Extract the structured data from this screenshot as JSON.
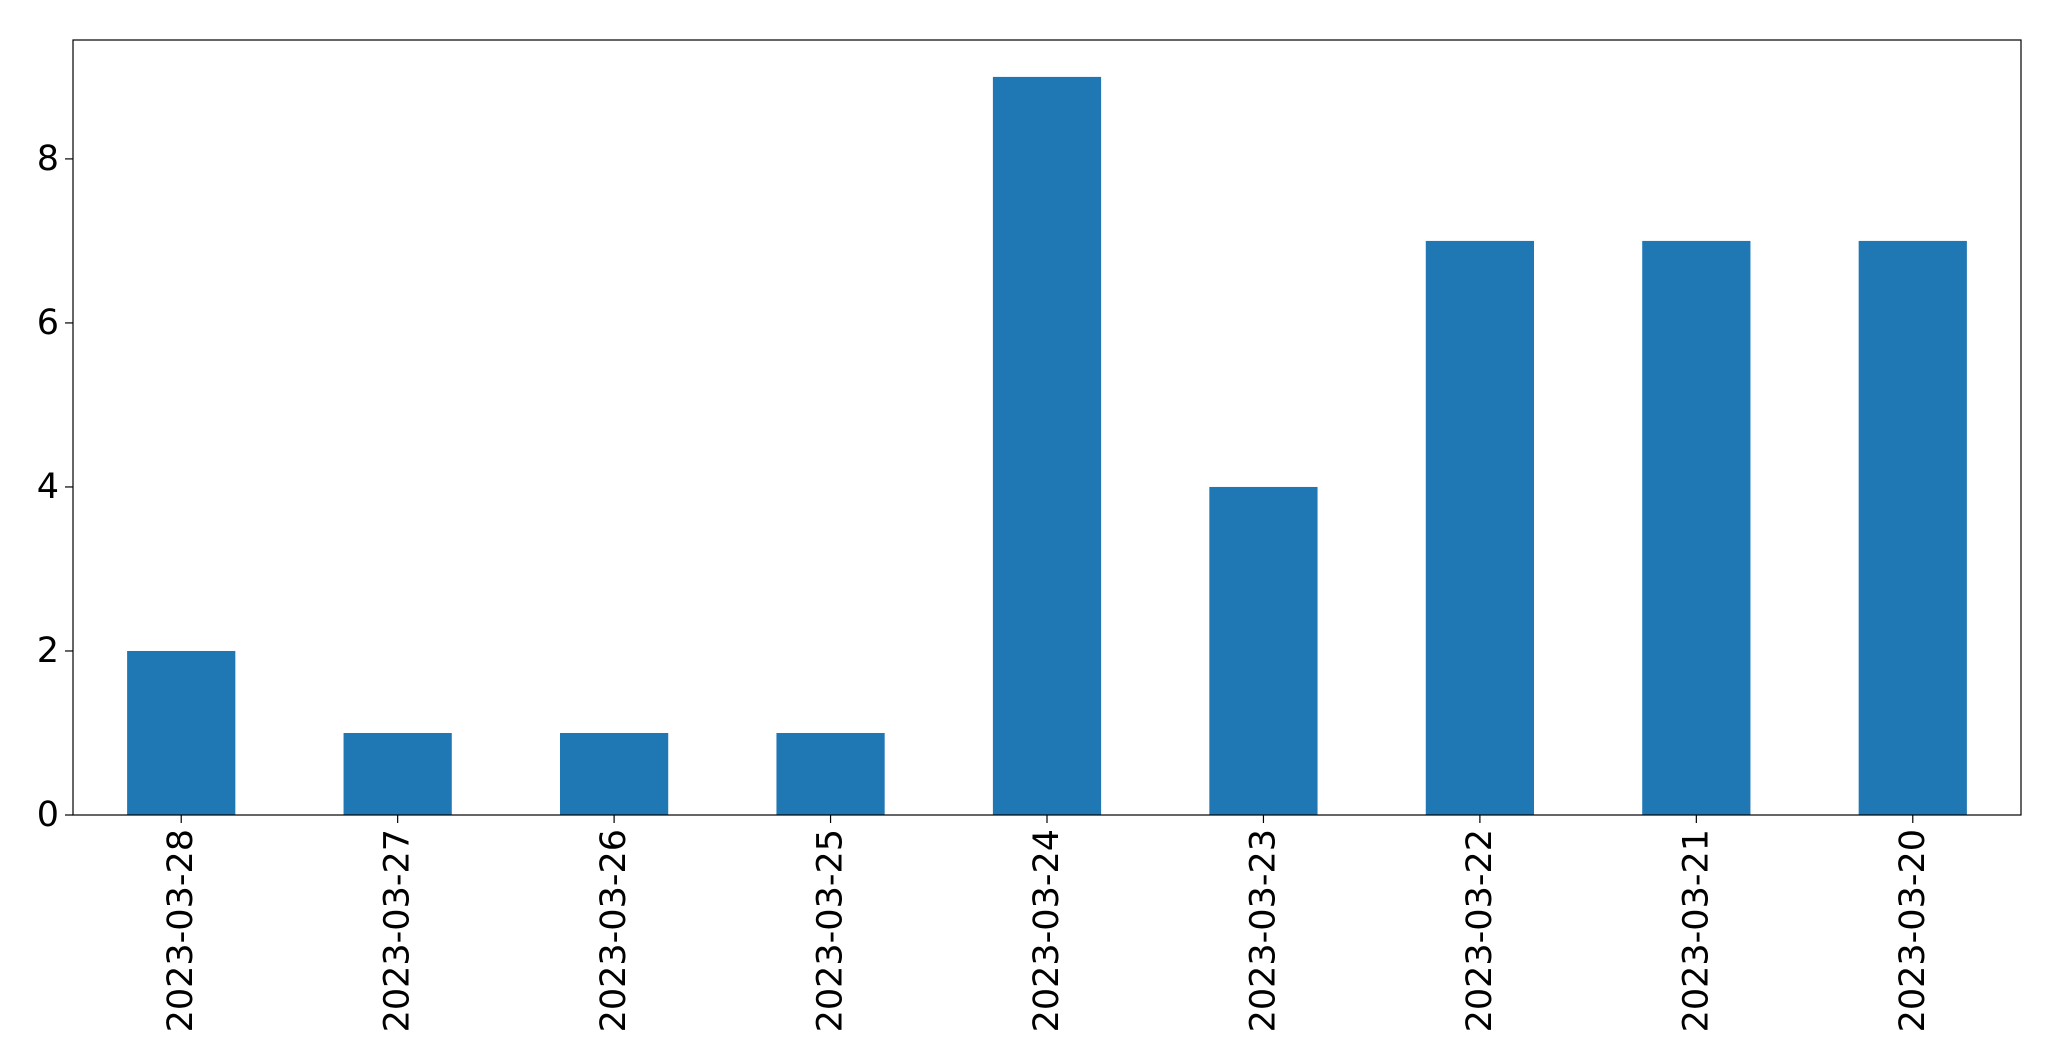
{
  "chart_data": {
    "type": "bar",
    "title": "",
    "xlabel": "",
    "ylabel": "",
    "categories": [
      "2023-03-28",
      "2023-03-27",
      "2023-03-26",
      "2023-03-25",
      "2023-03-24",
      "2023-03-23",
      "2023-03-22",
      "2023-03-21",
      "2023-03-20"
    ],
    "values": [
      2,
      1,
      1,
      1,
      9,
      4,
      7,
      7,
      7
    ],
    "ylim": [
      0,
      9.45
    ],
    "yticks": [
      0,
      2,
      4,
      6,
      8
    ],
    "ytick_labels": [
      "0",
      "2",
      "4",
      "6",
      "8"
    ],
    "xtick_rotation_deg": 90,
    "grid": false,
    "legend": "none",
    "bar_color": "#1f77b4"
  }
}
